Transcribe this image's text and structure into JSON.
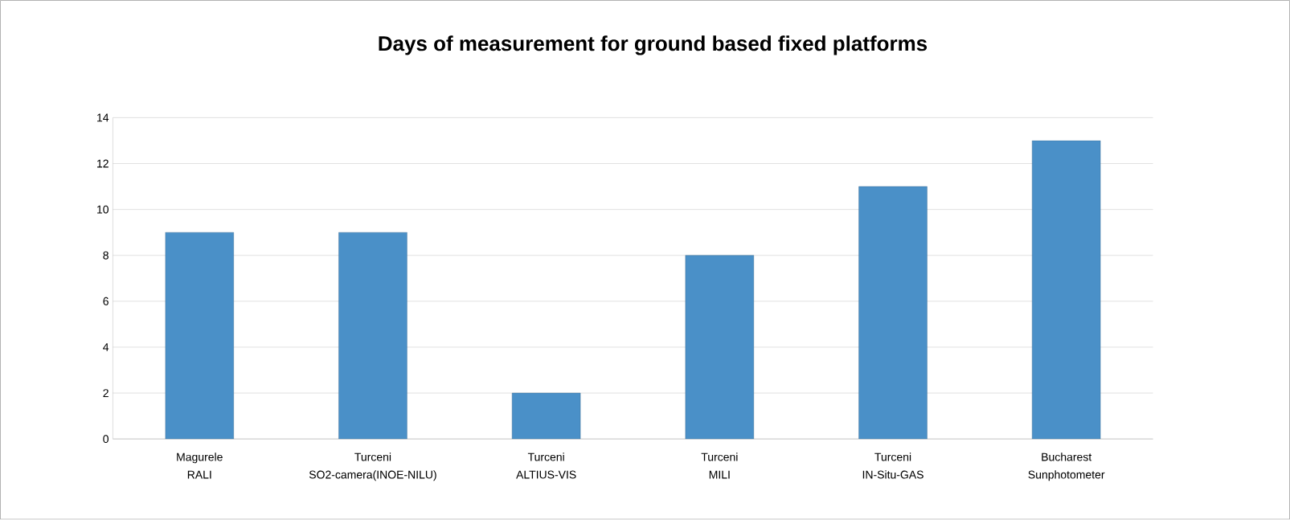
{
  "chart_data": {
    "type": "bar",
    "title": "Days of measurement for ground based fixed platforms",
    "categories": [
      "RALI",
      "SO2-camera(INOE-NILU)",
      "ALTIUS-VIS",
      "MILI",
      "IN-Situ-GAS",
      "Sunphotometer"
    ],
    "values": [
      9,
      9,
      2,
      8,
      11,
      13
    ],
    "color": "#4a90c8",
    "ylim": [
      0,
      14
    ],
    "yticks": [
      0,
      2,
      4,
      6,
      8,
      10,
      12,
      14
    ],
    "grid": "y",
    "annotations": [
      "Magurele",
      "Turceni",
      "Turceni",
      "Turceni",
      "Turceni",
      "Bucharest"
    ]
  }
}
